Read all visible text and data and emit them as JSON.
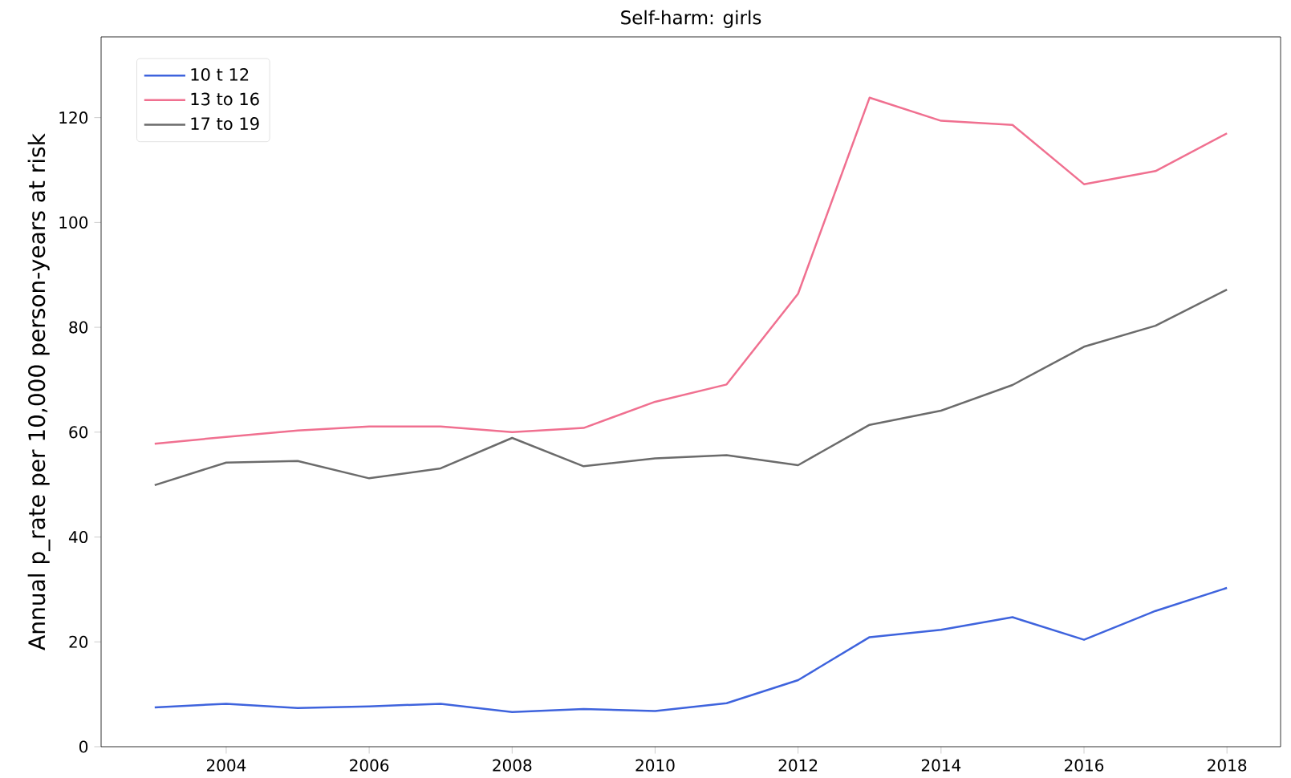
{
  "chart_data": {
    "type": "line",
    "title": "Self-harm: girls",
    "ylabel": "Annual p_rate per 10,000 person-years at risk",
    "x": [
      2003,
      2004,
      2005,
      2006,
      2007,
      2008,
      2009,
      2010,
      2011,
      2012,
      2013,
      2014,
      2015,
      2016,
      2017,
      2018
    ],
    "series": [
      {
        "name": "10 t 12",
        "color": "#3e63dd",
        "values": [
          7.5,
          8.2,
          7.4,
          7.7,
          8.2,
          6.6,
          7.2,
          6.8,
          8.3,
          12.7,
          20.9,
          22.3,
          24.7,
          20.4,
          25.9,
          30.3
        ]
      },
      {
        "name": "13 to 16",
        "color": "#f07090",
        "values": [
          57.8,
          59.1,
          60.3,
          61.1,
          61.1,
          60.0,
          60.8,
          65.8,
          69.1,
          86.4,
          123.8,
          119.4,
          118.6,
          107.3,
          109.8,
          117.0
        ]
      },
      {
        "name": "17 to 19",
        "color": "#6b6b6b",
        "values": [
          49.9,
          54.2,
          54.5,
          51.2,
          53.1,
          58.9,
          53.5,
          55.0,
          55.6,
          53.7,
          61.4,
          64.1,
          69.0,
          76.3,
          80.3,
          87.2
        ]
      }
    ],
    "xlim": [
      2002.25,
      2018.75
    ],
    "ylim": [
      0,
      135.4
    ],
    "xticks": [
      2004,
      2006,
      2008,
      2010,
      2012,
      2014,
      2016,
      2018
    ],
    "yticks": [
      0,
      20,
      40,
      60,
      80,
      100,
      120
    ],
    "legend": "top left",
    "grid": false,
    "marker": "none",
    "line_style": "solid"
  }
}
